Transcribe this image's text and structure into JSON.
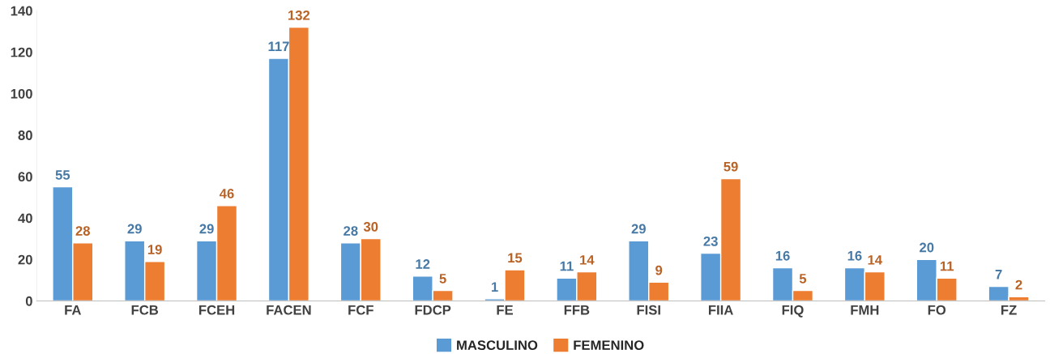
{
  "chart_data": {
    "type": "bar",
    "categories": [
      "FA",
      "FCB",
      "FCEH",
      "FACEN",
      "FCF",
      "FDCP",
      "FE",
      "FFB",
      "FISI",
      "FIIA",
      "FIQ",
      "FMH",
      "FO",
      "FZ"
    ],
    "series": [
      {
        "name": "MASCULINO",
        "color": "#5b9bd5",
        "values": [
          55,
          29,
          29,
          117,
          28,
          12,
          1,
          11,
          29,
          23,
          16,
          16,
          20,
          7
        ]
      },
      {
        "name": "FEMENINO",
        "color": "#ed7d31",
        "values": [
          28,
          19,
          46,
          132,
          30,
          5,
          15,
          14,
          9,
          59,
          5,
          14,
          11,
          2
        ]
      }
    ],
    "ylim": [
      0,
      140
    ],
    "yticks": [
      0,
      20,
      40,
      60,
      80,
      100,
      120,
      140
    ],
    "grid": false,
    "legend": "bottom",
    "data_labels": true
  }
}
